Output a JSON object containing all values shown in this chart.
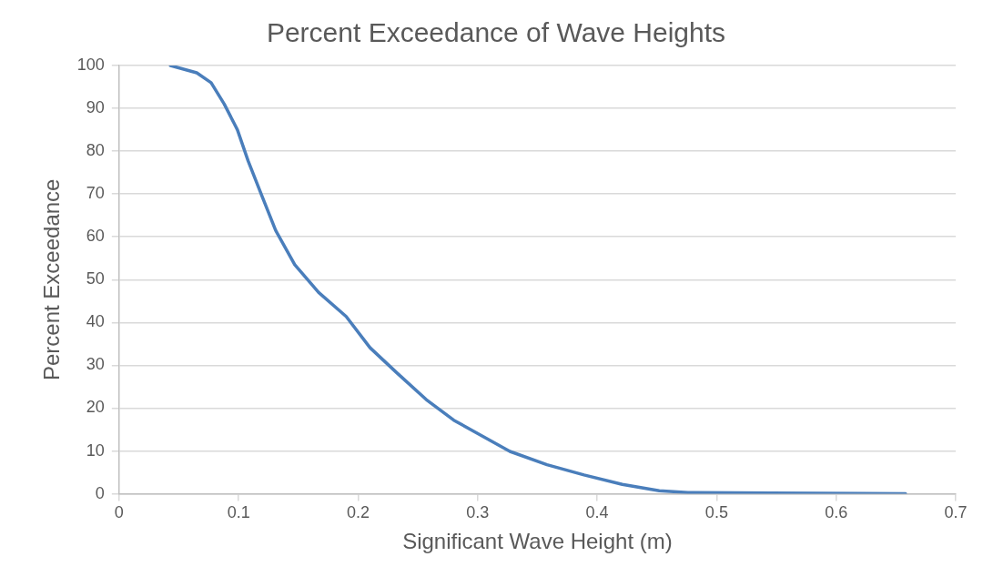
{
  "chart_data": {
    "type": "line",
    "title": "Percent Exceedance of Wave Heights",
    "xlabel": "Significant Wave Height (m)",
    "ylabel": "Percent Exceedance",
    "xlim": [
      0,
      0.7
    ],
    "xticks": [
      0,
      0.1,
      0.2,
      0.3,
      0.4,
      0.5,
      0.6,
      0.7
    ],
    "ylim": [
      0,
      100
    ],
    "yticks": [
      0,
      10,
      20,
      30,
      40,
      50,
      60,
      70,
      80,
      90,
      100
    ],
    "grid": "y",
    "legend": false,
    "marker": "none",
    "line_style": "solid",
    "series": [
      {
        "color": "#4a7ebb",
        "x": [
          0.043,
          0.065,
          0.077,
          0.088,
          0.099,
          0.108,
          0.12,
          0.131,
          0.147,
          0.167,
          0.19,
          0.21,
          0.233,
          0.257,
          0.28,
          0.303,
          0.327,
          0.358,
          0.389,
          0.421,
          0.452,
          0.476,
          0.546,
          0.624,
          0.658
        ],
        "values": [
          100,
          98.3,
          96,
          91,
          85,
          77.7,
          69.2,
          61.5,
          53.5,
          47,
          41.4,
          34.1,
          28.1,
          22,
          17.2,
          13.6,
          9.9,
          6.8,
          4.4,
          2.2,
          0.7,
          0.3,
          0.2,
          0.1,
          0
        ]
      }
    ]
  }
}
